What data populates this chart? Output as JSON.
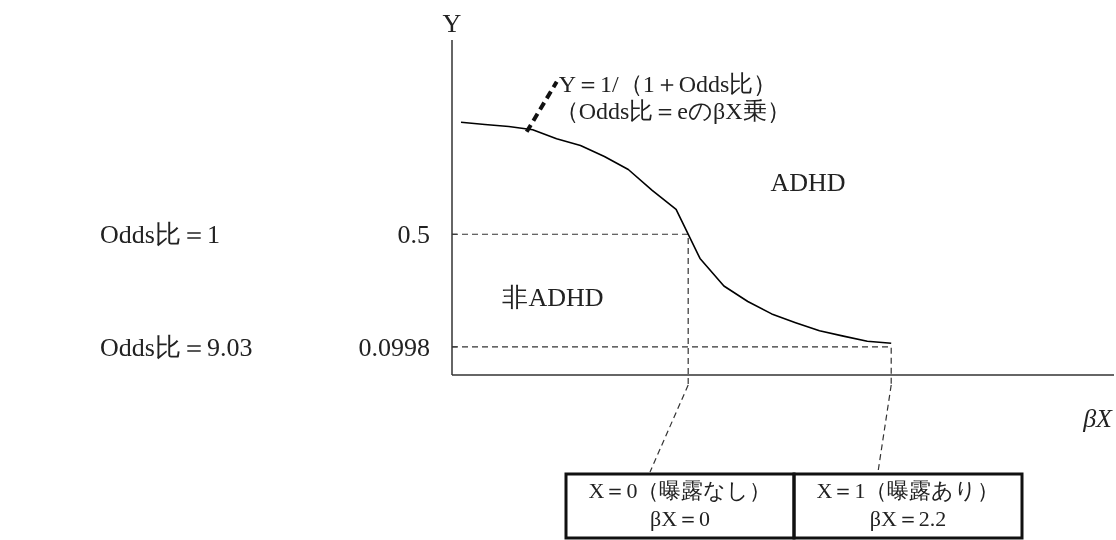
{
  "chart_data": {
    "type": "line",
    "ylabel": "Y",
    "categories": [
      null,
      null,
      null,
      null,
      null,
      null,
      null,
      null,
      null,
      null,
      null,
      null,
      null,
      null,
      null,
      null,
      null,
      null,
      null
    ],
    "series": [
      {
        "color": "#000000",
        "values": [
          0.898,
          0.89,
          0.883,
          0.871,
          0.839,
          0.815,
          0.776,
          0.73,
          0.656,
          0.588,
          0.414,
          0.316,
          0.261,
          0.217,
          0.186,
          0.157,
          0.138,
          0.12,
          0.113
        ]
      }
    ],
    "ylim": [
      0,
      1.19
    ],
    "yticks": [
      0.5,
      0.0998
    ],
    "tick_labels": "y",
    "marker": "none",
    "line_style": "solid",
    "grid": false,
    "ref_lines": [
      {
        "axis": "y",
        "value": 0.5,
        "line_style": "dashed"
      },
      {
        "axis": "y",
        "value": 0.0998,
        "line_style": "dashed"
      }
    ],
    "annotations": [
      "Y＝1/（1＋Odds比）",
      "（Odds比＝eのβX乗）",
      "ADHD",
      "非ADHD",
      "Odds比＝1",
      "Odds比＝9.03",
      "βX",
      "X＝0（曝露なし）",
      "βX＝0",
      "X＝1（曝露あり）",
      "βX＝2.2"
    ]
  }
}
